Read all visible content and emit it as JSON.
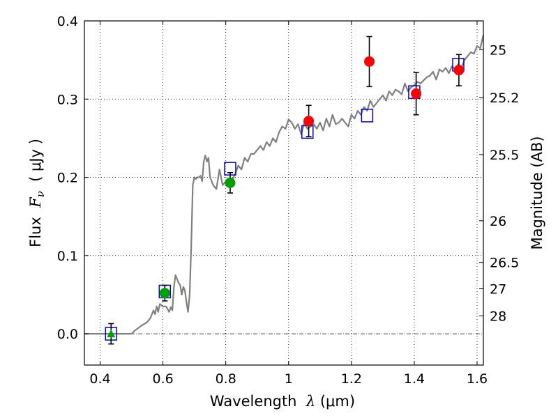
{
  "chart_data": {
    "type": "scatter",
    "title": "",
    "xlabel": {
      "prefix": "Wavelength  ",
      "symbol": "λ",
      "unit": " (μm)"
    },
    "ylabel": {
      "prefix": "Flux  ",
      "symbol": "F",
      "subscript": "ν",
      "unit": "  ( μJy )"
    },
    "ylabel_right": "Magnitude (AB)",
    "xlim": [
      0.35,
      1.62
    ],
    "ylim": [
      -0.04,
      0.4
    ],
    "grid": true,
    "x_ticks": [
      0.4,
      0.6,
      0.8,
      1.0,
      1.2,
      1.4,
      1.6
    ],
    "x_tick_labels": [
      "0.4",
      "0.6",
      "0.8",
      "1",
      "1.2",
      "1.4",
      "1.6"
    ],
    "y_ticks": [
      0.0,
      0.1,
      0.2,
      0.3,
      0.4
    ],
    "y_tick_labels": [
      "0.0",
      "0.1",
      "0.2",
      "0.3",
      "0.4"
    ],
    "right_ticks": [
      {
        "flux": 0.3631,
        "label": "25"
      },
      {
        "flux": 0.302,
        "label": "25.2"
      },
      {
        "flux": 0.2291,
        "label": "25.5"
      },
      {
        "flux": 0.1445,
        "label": "26"
      },
      {
        "flux": 0.0912,
        "label": "26.5"
      },
      {
        "flux": 0.0575,
        "label": "27"
      },
      {
        "flux": 0.0229,
        "label": "28"
      }
    ],
    "colors": {
      "model": "#808080",
      "observed_green": "#00a000",
      "observed_red": "#ff0000",
      "model_photometry": "#0000dd"
    },
    "series": [
      {
        "kind": "model_spectrum",
        "x": [
          0.35,
          0.44,
          0.5,
          0.51,
          0.53,
          0.55,
          0.56,
          0.57,
          0.575,
          0.58,
          0.585,
          0.59,
          0.6,
          0.61,
          0.62,
          0.625,
          0.63,
          0.635,
          0.64,
          0.645,
          0.65,
          0.655,
          0.66,
          0.665,
          0.67,
          0.675,
          0.68,
          0.685,
          0.69,
          0.695,
          0.7,
          0.705,
          0.71,
          0.715,
          0.72,
          0.725,
          0.73,
          0.735,
          0.74,
          0.745,
          0.75,
          0.76,
          0.77,
          0.78,
          0.79,
          0.8,
          0.81,
          0.82,
          0.83,
          0.84,
          0.85,
          0.86,
          0.87,
          0.88,
          0.89,
          0.9,
          0.91,
          0.92,
          0.93,
          0.94,
          0.95,
          0.96,
          0.97,
          0.98,
          0.99,
          1.0,
          1.01,
          1.02,
          1.03,
          1.04,
          1.05,
          1.06,
          1.07,
          1.08,
          1.09,
          1.1,
          1.11,
          1.12,
          1.13,
          1.14,
          1.15,
          1.16,
          1.17,
          1.18,
          1.19,
          1.2,
          1.21,
          1.22,
          1.23,
          1.24,
          1.25,
          1.26,
          1.27,
          1.28,
          1.29,
          1.3,
          1.31,
          1.32,
          1.33,
          1.34,
          1.35,
          1.36,
          1.37,
          1.38,
          1.39,
          1.4,
          1.41,
          1.42,
          1.43,
          1.44,
          1.45,
          1.46,
          1.47,
          1.48,
          1.49,
          1.5,
          1.51,
          1.52,
          1.53,
          1.54,
          1.55,
          1.56,
          1.57,
          1.58,
          1.59,
          1.6,
          1.61,
          1.62
        ],
        "y": [
          0.0,
          0.0,
          0.0,
          0.004,
          0.01,
          0.015,
          0.02,
          0.03,
          0.025,
          0.035,
          0.028,
          0.038,
          0.035,
          0.035,
          0.028,
          0.034,
          0.03,
          0.06,
          0.075,
          0.07,
          0.065,
          0.062,
          0.05,
          0.06,
          0.055,
          0.04,
          0.028,
          0.05,
          0.11,
          0.19,
          0.2,
          0.198,
          0.2,
          0.2,
          0.202,
          0.195,
          0.22,
          0.228,
          0.22,
          0.225,
          0.2,
          0.19,
          0.185,
          0.21,
          0.19,
          0.195,
          0.19,
          0.195,
          0.205,
          0.215,
          0.21,
          0.225,
          0.22,
          0.23,
          0.23,
          0.235,
          0.24,
          0.235,
          0.245,
          0.24,
          0.25,
          0.245,
          0.258,
          0.265,
          0.262,
          0.274,
          0.27,
          0.262,
          0.268,
          0.255,
          0.27,
          0.262,
          0.265,
          0.268,
          0.262,
          0.27,
          0.26,
          0.275,
          0.265,
          0.28,
          0.268,
          0.27,
          0.275,
          0.27,
          0.265,
          0.28,
          0.275,
          0.285,
          0.28,
          0.29,
          0.285,
          0.298,
          0.29,
          0.295,
          0.3,
          0.305,
          0.298,
          0.31,
          0.305,
          0.312,
          0.31,
          0.306,
          0.32,
          0.31,
          0.315,
          0.318,
          0.322,
          0.32,
          0.324,
          0.328,
          0.33,
          0.335,
          0.325,
          0.338,
          0.335,
          0.34,
          0.333,
          0.342,
          0.338,
          0.345,
          0.34,
          0.35,
          0.355,
          0.36,
          0.358,
          0.368,
          0.365,
          0.382
        ]
      },
      {
        "kind": "model_photometry",
        "marker": "square",
        "x": [
          0.435,
          0.606,
          0.814,
          1.06,
          1.25,
          1.4,
          1.54
        ],
        "y": [
          0.0,
          0.054,
          0.211,
          0.258,
          0.279,
          0.309,
          0.344
        ]
      },
      {
        "kind": "observed_detections",
        "marker": "circle",
        "points": [
          {
            "x": 0.606,
            "y": 0.052,
            "err": 0.01,
            "color": "green"
          },
          {
            "x": 0.814,
            "y": 0.193,
            "err": 0.013,
            "color": "green"
          },
          {
            "x": 1.064,
            "y": 0.272,
            "err": 0.02,
            "color": "red"
          },
          {
            "x": 1.257,
            "y": 0.348,
            "err": 0.032,
            "color": "red"
          },
          {
            "x": 1.406,
            "y": 0.307,
            "err": 0.027,
            "color": "red"
          },
          {
            "x": 1.542,
            "y": 0.337,
            "err": 0.02,
            "color": "red"
          }
        ]
      },
      {
        "kind": "observed_limit",
        "marker": "triangle",
        "points": [
          {
            "x": 0.435,
            "y": 0.0,
            "err": 0.013,
            "color": "green"
          }
        ]
      }
    ]
  }
}
